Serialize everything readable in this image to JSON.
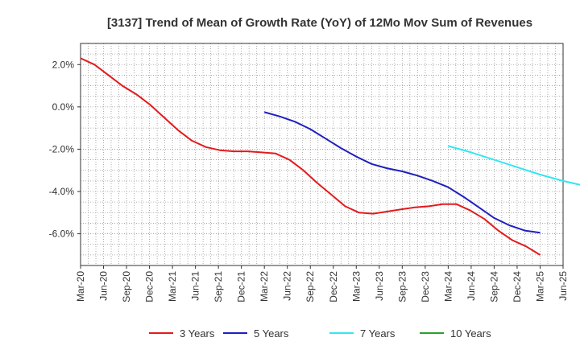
{
  "chart_data": {
    "type": "line",
    "title": "[3137]  Trend of Mean of Growth Rate (YoY) of 12Mo Mov Sum of Revenues",
    "xlabel": "",
    "ylabel": "",
    "x_tick_labels": [
      "Mar-20",
      "Jun-20",
      "Sep-20",
      "Dec-20",
      "Mar-21",
      "Jun-21",
      "Sep-21",
      "Dec-21",
      "Mar-22",
      "Jun-22",
      "Sep-22",
      "Dec-22",
      "Mar-23",
      "Jun-23",
      "Sep-23",
      "Dec-23",
      "Mar-24",
      "Jun-24",
      "Sep-24",
      "Dec-24",
      "Mar-25",
      "Jun-25"
    ],
    "y_ticks": [
      2.0,
      0.0,
      -2.0,
      -4.0,
      -6.0
    ],
    "y_tick_labels": [
      "2.0%",
      "0.0%",
      "-2.0%",
      "-4.0%",
      "-6.0%"
    ],
    "ylim": [
      -7.5,
      3.0
    ],
    "xlim_quarter_index": [
      0,
      21
    ],
    "grid": true,
    "legend_position": "bottom",
    "series": [
      {
        "name": "3 Years",
        "color": "#e31a1c",
        "start_quarter_index": 0,
        "values": [
          2.3,
          2.0,
          1.5,
          1.0,
          0.6,
          0.1,
          -0.5,
          -1.1,
          -1.6,
          -1.9,
          -2.05,
          -2.1,
          -2.1,
          -2.15,
          -2.2,
          -2.5,
          -3.0,
          -3.6,
          -4.15,
          -4.7,
          -5.0,
          -5.05,
          -4.95,
          -4.85,
          -4.75,
          -4.7,
          -4.6,
          -4.6,
          -4.9,
          -5.3,
          -5.85,
          -6.3,
          -6.6,
          -7.0
        ]
      },
      {
        "name": "5 Years",
        "color": "#1f1fbf",
        "start_quarter_index": 8,
        "values": [
          -0.25,
          -0.45,
          -0.7,
          -1.05,
          -1.5,
          -1.95,
          -2.35,
          -2.7,
          -2.9,
          -3.05,
          -3.25,
          -3.5,
          -3.8,
          -4.25,
          -4.75,
          -5.25,
          -5.6,
          -5.85,
          -5.95
        ]
      },
      {
        "name": "7 Years",
        "color": "#33e6f0",
        "start_quarter_index": 16,
        "values": [
          -1.85,
          -2.15,
          -2.5,
          -2.85,
          -3.2,
          -3.5,
          -3.75
        ]
      },
      {
        "name": "10 Years",
        "color": "#2ca02c",
        "start_quarter_index": 16,
        "values": []
      }
    ]
  }
}
